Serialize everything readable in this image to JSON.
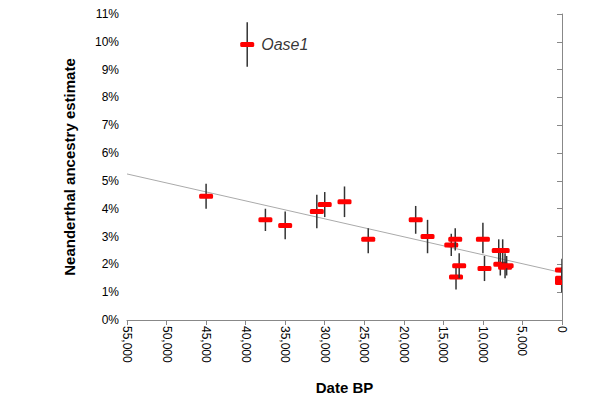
{
  "chart_data": {
    "type": "scatter",
    "x_label": "Date BP",
    "y_label": "Neanderthal ancestry estimate",
    "x": [
      39800,
      45000,
      37500,
      35000,
      31000,
      30000,
      27500,
      24500,
      18500,
      17000,
      14000,
      13500,
      13400,
      13000,
      10000,
      9800,
      8000,
      7800,
      7500,
      7200,
      7000,
      0,
      0,
      0,
      0
    ],
    "values": [
      9.9,
      4.45,
      3.6,
      3.4,
      3.9,
      4.15,
      4.25,
      2.9,
      3.6,
      3.0,
      2.7,
      2.9,
      1.55,
      1.95,
      2.9,
      1.85,
      2.5,
      2.0,
      2.5,
      1.9,
      1.95,
      1.8,
      1.5,
      1.4,
      1.35
    ],
    "error_low": [
      9.1,
      4.0,
      3.2,
      2.9,
      3.3,
      3.7,
      3.7,
      2.4,
      3.1,
      2.4,
      2.3,
      2.5,
      1.1,
      1.5,
      2.4,
      1.4,
      2.0,
      1.6,
      2.0,
      1.5,
      1.6,
      1.4,
      1.1,
      1.0,
      1.0
    ],
    "error_high": [
      10.7,
      4.9,
      4.0,
      3.9,
      4.5,
      4.6,
      4.8,
      3.3,
      4.1,
      3.6,
      3.1,
      3.3,
      2.0,
      2.4,
      3.5,
      2.3,
      2.9,
      2.5,
      2.9,
      2.4,
      2.3,
      2.2,
      1.9,
      1.8,
      1.7
    ],
    "color": "#ff0000",
    "marker": "rect",
    "trend": {
      "x": [
        55000,
        0
      ],
      "values": [
        5.25,
        1.7
      ],
      "color": "#aaaaaa",
      "line_style": "solid"
    },
    "annotations": [
      {
        "text": "Oase1",
        "x": 39800,
        "y": 9.9
      }
    ],
    "xlim": [
      55000,
      0
    ],
    "xticks": [
      {
        "value": 55000,
        "label": "55,000"
      },
      {
        "value": 50000,
        "label": "50,000"
      },
      {
        "value": 45000,
        "label": "45,000"
      },
      {
        "value": 40000,
        "label": "40,000"
      },
      {
        "value": 35000,
        "label": "35,000"
      },
      {
        "value": 30000,
        "label": "30,000"
      },
      {
        "value": 25000,
        "label": "25,000"
      },
      {
        "value": 20000,
        "label": "20,000"
      },
      {
        "value": 15000,
        "label": "15,000"
      },
      {
        "value": 10000,
        "label": "10,000"
      },
      {
        "value": 5000,
        "label": "5,000"
      },
      0
    ],
    "ylim": [
      0,
      11
    ],
    "yticks": [
      {
        "value": 0,
        "label": "0%"
      },
      {
        "value": 1,
        "label": "1%"
      },
      {
        "value": 2,
        "label": "2%"
      },
      {
        "value": 3,
        "label": "3%"
      },
      {
        "value": 4,
        "label": "4%"
      },
      {
        "value": 5,
        "label": "5%"
      },
      {
        "value": 6,
        "label": "6%"
      },
      {
        "value": 7,
        "label": "7%"
      },
      {
        "value": 8,
        "label": "8%"
      },
      {
        "value": 9,
        "label": "9%"
      },
      {
        "value": 10,
        "label": "10%"
      },
      {
        "value": 11,
        "label": "11%"
      }
    ],
    "grid": false
  }
}
